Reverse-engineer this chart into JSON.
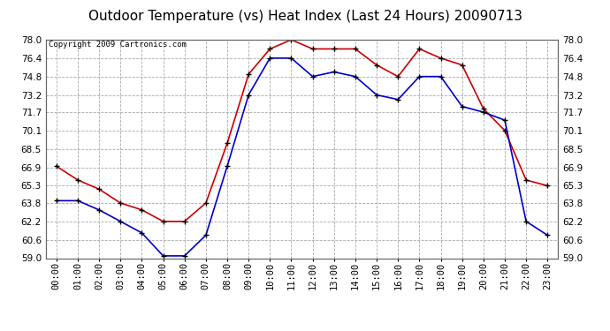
{
  "title": "Outdoor Temperature (vs) Heat Index (Last 24 Hours) 20090713",
  "copyright": "Copyright 2009 Cartronics.com",
  "hours": [
    "00:00",
    "01:00",
    "02:00",
    "03:00",
    "04:00",
    "05:00",
    "06:00",
    "07:00",
    "08:00",
    "09:00",
    "10:00",
    "11:00",
    "12:00",
    "13:00",
    "14:00",
    "15:00",
    "16:00",
    "17:00",
    "18:00",
    "19:00",
    "20:00",
    "21:00",
    "22:00",
    "23:00"
  ],
  "red_data": [
    67.0,
    65.8,
    65.0,
    63.8,
    63.2,
    62.2,
    62.2,
    63.8,
    69.0,
    75.0,
    77.2,
    78.0,
    77.2,
    77.2,
    77.2,
    75.8,
    74.8,
    77.2,
    76.4,
    75.8,
    72.0,
    70.1,
    65.8,
    65.3
  ],
  "blue_data": [
    64.0,
    64.0,
    63.2,
    62.2,
    61.2,
    59.2,
    59.2,
    61.0,
    67.0,
    73.2,
    76.4,
    76.4,
    74.8,
    75.2,
    74.8,
    73.2,
    72.8,
    74.8,
    74.8,
    72.2,
    71.7,
    71.0,
    62.2,
    61.0
  ],
  "ylim": [
    59.0,
    78.0
  ],
  "yticks": [
    59.0,
    60.6,
    62.2,
    63.8,
    65.3,
    66.9,
    68.5,
    70.1,
    71.7,
    73.2,
    74.8,
    76.4,
    78.0
  ],
  "red_color": "#cc0000",
  "blue_color": "#0000cc",
  "bg_color": "#ffffff",
  "grid_color": "#aaaaaa",
  "title_fontsize": 11,
  "copyright_fontsize": 6.5,
  "tick_fontsize": 7.5
}
